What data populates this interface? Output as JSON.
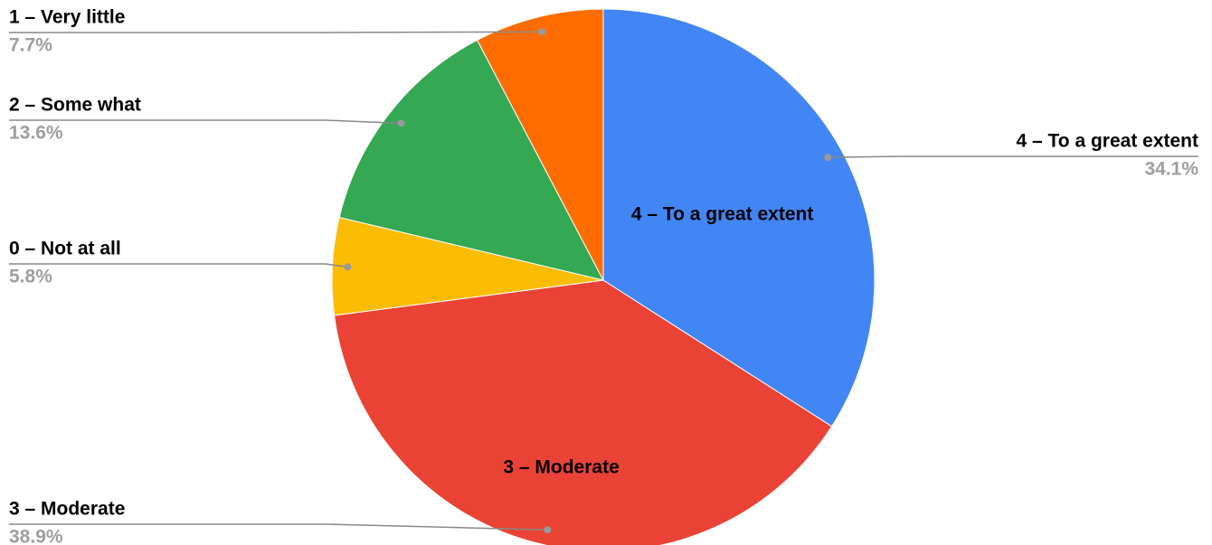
{
  "chart_data": {
    "type": "pie",
    "categories": [
      "4 – To a great extent",
      "3 – Moderate",
      "0 – Not at all",
      "2 – Some what",
      "1 – Very little"
    ],
    "values": [
      34.1,
      38.9,
      5.8,
      13.6,
      7.7
    ],
    "value_labels": [
      "34.1%",
      "38.9%",
      "5.8%",
      "13.6%",
      "7.7%"
    ],
    "colors": [
      "#4285f4",
      "#ea4335",
      "#fbbc04",
      "#34a853",
      "#ff6d01"
    ]
  }
}
